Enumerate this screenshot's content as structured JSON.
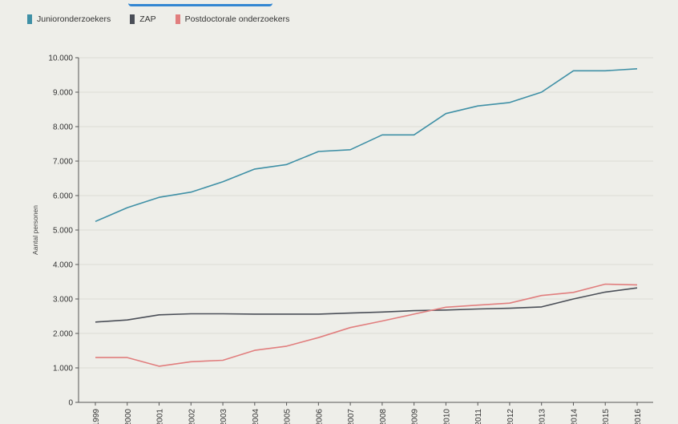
{
  "chart_data": {
    "type": "line",
    "title": "",
    "xlabel": "",
    "ylabel": "Aantal personen",
    "x": [
      "1999",
      "2000",
      "2001",
      "2002",
      "2003",
      "2004",
      "2005",
      "2006",
      "2007",
      "2008",
      "2009",
      "2010",
      "2011",
      "2012",
      "2013",
      "2014",
      "2015",
      "2016"
    ],
    "y_ticks": [
      0,
      1000,
      2000,
      3000,
      4000,
      5000,
      6000,
      7000,
      8000,
      9000,
      10000
    ],
    "y_tick_labels": [
      "0",
      "1.000",
      "2.000",
      "3.000",
      "4.000",
      "5.000",
      "6.000",
      "7.000",
      "8.000",
      "9.000",
      "10.000"
    ],
    "ylim": [
      0,
      10000
    ],
    "grid": true,
    "legend_position": "top-left",
    "series": [
      {
        "name": "Junioronderzoekers",
        "color": "#3f90a6",
        "values": [
          5250,
          5650,
          5950,
          6100,
          6400,
          6770,
          6900,
          7280,
          7330,
          7760,
          7760,
          8380,
          8600,
          8700,
          9000,
          9620,
          9620,
          9680
        ]
      },
      {
        "name": "ZAP",
        "color": "#4a4e57",
        "values": [
          2330,
          2390,
          2540,
          2570,
          2570,
          2560,
          2560,
          2560,
          2590,
          2620,
          2660,
          2680,
          2710,
          2730,
          2770,
          3000,
          3200,
          3320
        ]
      },
      {
        "name": "Postdoctorale onderzoekers",
        "color": "#e17e7e",
        "values": [
          1300,
          1300,
          1050,
          1180,
          1220,
          1510,
          1630,
          1880,
          2170,
          2360,
          2560,
          2760,
          2820,
          2880,
          3100,
          3190,
          3430,
          3410
        ]
      }
    ]
  }
}
